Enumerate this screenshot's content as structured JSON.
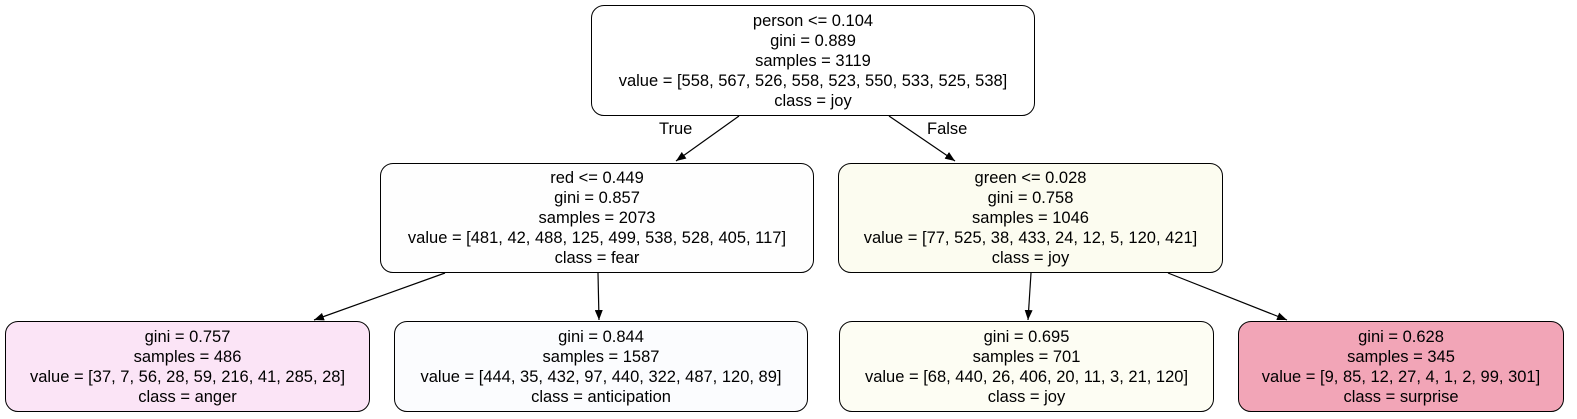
{
  "nodes": [
    {
      "id": "root",
      "color": "#ffffff",
      "lines": [
        "person <= 0.104",
        "gini = 0.889",
        "samples = 3119",
        "value = [558, 567, 526, 558, 523, 550, 533, 525, 538]",
        "class = joy"
      ]
    },
    {
      "id": "left",
      "color": "#fefefe",
      "lines": [
        "red <= 0.449",
        "gini = 0.857",
        "samples = 2073",
        "value = [481, 42, 488, 125, 499, 538, 528, 405, 117]",
        "class = fear"
      ]
    },
    {
      "id": "right",
      "color": "#fcfcf0",
      "lines": [
        "green <= 0.028",
        "gini = 0.758",
        "samples = 1046",
        "value = [77, 525, 38, 433, 24, 12, 5, 120, 421]",
        "class = joy"
      ]
    },
    {
      "id": "ll",
      "color": "#fbe4f6",
      "lines": [
        "gini = 0.757",
        "samples = 486",
        "value = [37, 7, 56, 28, 59, 216, 41, 285, 28]",
        "class = anger"
      ]
    },
    {
      "id": "lr",
      "color": "#fbfcfe",
      "lines": [
        "gini = 0.844",
        "samples = 1587",
        "value = [444, 35, 432, 97, 440, 322, 487, 120, 89]",
        "class = anticipation"
      ]
    },
    {
      "id": "rl",
      "color": "#fdfdf3",
      "lines": [
        "gini = 0.695",
        "samples = 701",
        "value = [68, 440, 26, 406, 20, 11, 3, 21, 120]",
        "class = joy"
      ]
    },
    {
      "id": "rr",
      "color": "#f2a5b7",
      "lines": [
        "gini = 0.628",
        "samples = 345",
        "value = [9, 85, 12, 27, 4, 1, 2, 99, 301]",
        "class = surprise"
      ]
    }
  ],
  "edge_labels": {
    "true_label": "True",
    "false_label": "False"
  }
}
